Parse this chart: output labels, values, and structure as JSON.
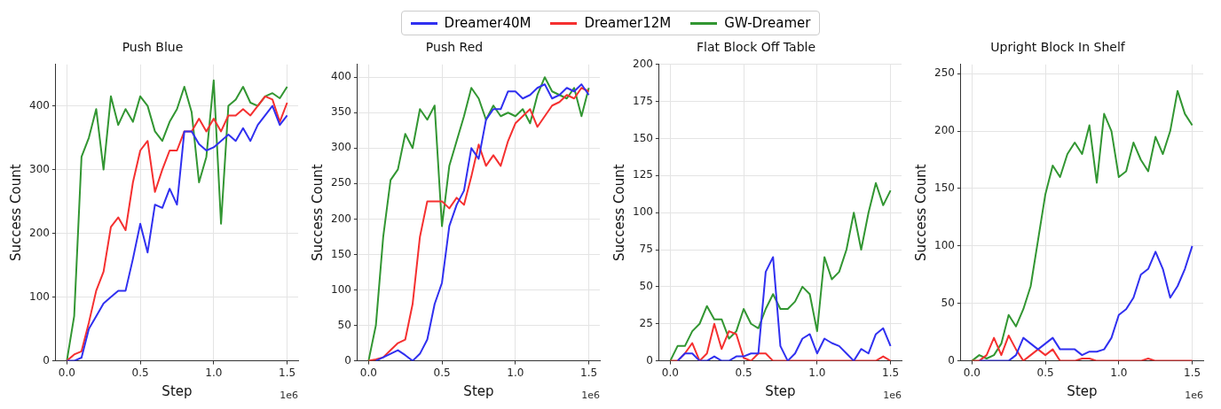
{
  "chart_data": [
    {
      "type": "line",
      "title": "Push Blue",
      "xlabel": "Step",
      "ylabel": "Success Count",
      "legend": "top",
      "grid": true,
      "marker": "none",
      "annotations": [
        "1e6"
      ],
      "x": [
        0,
        0.05,
        0.1,
        0.15,
        0.2,
        0.25,
        0.3,
        0.35,
        0.4,
        0.45,
        0.5,
        0.55,
        0.6,
        0.65,
        0.7,
        0.75,
        0.8,
        0.85,
        0.9,
        0.95,
        1.0,
        1.05,
        1.1,
        1.15,
        1.2,
        1.25,
        1.3,
        1.35,
        1.4,
        1.45,
        1.5
      ],
      "xlim": [
        -0.075,
        1.575
      ],
      "xticks": [
        {
          "value": 0,
          "label": "0.0"
        },
        {
          "value": 0.5,
          "label": "0.5"
        },
        {
          "value": 1,
          "label": "1.0"
        },
        {
          "value": 1.5,
          "label": "1.5"
        }
      ],
      "ylim": [
        0,
        465
      ],
      "yticks": [
        0,
        100,
        200,
        300,
        400
      ],
      "series": [
        {
          "name": "Dreamer40M",
          "color": "#3030f0",
          "values": [
            0,
            0,
            5,
            50,
            70,
            90,
            100,
            110,
            110,
            160,
            215,
            170,
            245,
            240,
            270,
            245,
            360,
            360,
            340,
            330,
            335,
            345,
            355,
            345,
            365,
            345,
            370,
            385,
            400,
            370,
            385
          ]
        },
        {
          "name": "Dreamer12M",
          "color": "#f53030",
          "values": [
            0,
            10,
            15,
            60,
            110,
            140,
            210,
            225,
            205,
            280,
            330,
            345,
            265,
            300,
            330,
            330,
            360,
            360,
            380,
            360,
            380,
            360,
            385,
            385,
            395,
            385,
            400,
            415,
            410,
            375,
            405
          ]
        },
        {
          "name": "GW-Dreamer",
          "color": "#329632",
          "values": [
            0,
            70,
            320,
            350,
            395,
            300,
            415,
            370,
            395,
            375,
            415,
            400,
            360,
            345,
            375,
            395,
            430,
            390,
            280,
            320,
            440,
            215,
            400,
            410,
            430,
            405,
            400,
            415,
            420,
            412,
            430
          ]
        }
      ]
    },
    {
      "type": "line",
      "title": "Push Red",
      "xlabel": "Step",
      "ylabel": "Success Count",
      "grid": true,
      "marker": "none",
      "annotations": [
        "1e6"
      ],
      "x": [
        0,
        0.05,
        0.1,
        0.15,
        0.2,
        0.25,
        0.3,
        0.35,
        0.4,
        0.45,
        0.5,
        0.55,
        0.6,
        0.65,
        0.7,
        0.75,
        0.8,
        0.85,
        0.9,
        0.95,
        1.0,
        1.05,
        1.1,
        1.15,
        1.2,
        1.25,
        1.3,
        1.35,
        1.4,
        1.45,
        1.5
      ],
      "xlim": [
        -0.075,
        1.575
      ],
      "xticks": [
        {
          "value": 0,
          "label": "0.0"
        },
        {
          "value": 0.5,
          "label": "0.5"
        },
        {
          "value": 1,
          "label": "1.0"
        },
        {
          "value": 1.5,
          "label": "1.5"
        }
      ],
      "ylim": [
        0,
        418
      ],
      "yticks": [
        0,
        50,
        100,
        150,
        200,
        250,
        300,
        350,
        400
      ],
      "series": [
        {
          "color": "#3030f0",
          "values": [
            null,
            0,
            5,
            10,
            15,
            8,
            0,
            10,
            30,
            80,
            110,
            190,
            220,
            240,
            300,
            285,
            340,
            355,
            355,
            380,
            380,
            370,
            375,
            385,
            390,
            370,
            375,
            385,
            380,
            390,
            375
          ]
        },
        {
          "color": "#f53030",
          "values": [
            0,
            2,
            5,
            15,
            25,
            30,
            80,
            175,
            225,
            225,
            225,
            215,
            230,
            220,
            260,
            305,
            275,
            290,
            275,
            310,
            335,
            345,
            355,
            330,
            345,
            360,
            365,
            375,
            370,
            385,
            380
          ]
        },
        {
          "color": "#329632",
          "values": [
            0,
            50,
            175,
            255,
            270,
            320,
            300,
            355,
            340,
            360,
            190,
            275,
            310,
            345,
            385,
            370,
            340,
            360,
            345,
            350,
            345,
            355,
            335,
            375,
            400,
            380,
            375,
            370,
            385,
            345,
            385
          ]
        }
      ]
    },
    {
      "type": "line",
      "title": "Flat Block Off Table",
      "xlabel": "Step",
      "ylabel": "Success Count",
      "grid": true,
      "marker": "none",
      "annotations": [
        "1e6"
      ],
      "x": [
        0,
        0.05,
        0.1,
        0.15,
        0.2,
        0.25,
        0.3,
        0.35,
        0.4,
        0.45,
        0.5,
        0.55,
        0.6,
        0.65,
        0.7,
        0.75,
        0.8,
        0.85,
        0.9,
        0.95,
        1.0,
        1.05,
        1.1,
        1.15,
        1.2,
        1.25,
        1.3,
        1.35,
        1.4,
        1.45,
        1.5
      ],
      "xlim": [
        -0.075,
        1.575
      ],
      "xticks": [
        {
          "value": 0,
          "label": "0.0"
        },
        {
          "value": 0.5,
          "label": "0.5"
        },
        {
          "value": 1,
          "label": "1.0"
        },
        {
          "value": 1.5,
          "label": "1.5"
        }
      ],
      "ylim": [
        0,
        200
      ],
      "yticks": [
        0,
        25,
        50,
        75,
        100,
        125,
        150,
        175,
        200
      ],
      "series": [
        {
          "color": "#3030f0",
          "values": [
            null,
            0,
            5,
            5,
            0,
            0,
            3,
            0,
            0,
            3,
            3,
            5,
            5,
            60,
            70,
            10,
            0,
            5,
            15,
            18,
            5,
            15,
            12,
            10,
            5,
            0,
            8,
            5,
            18,
            22,
            10
          ]
        },
        {
          "color": "#f53030",
          "values": [
            0,
            0,
            5,
            12,
            0,
            5,
            25,
            8,
            20,
            18,
            2,
            0,
            5,
            5,
            0,
            0,
            0,
            0,
            0,
            0,
            0,
            0,
            0,
            0,
            0,
            0,
            0,
            0,
            0,
            3,
            0
          ]
        },
        {
          "color": "#329632",
          "values": [
            0,
            10,
            10,
            20,
            25,
            37,
            28,
            28,
            15,
            20,
            35,
            25,
            22,
            35,
            45,
            35,
            35,
            40,
            50,
            45,
            20,
            70,
            55,
            60,
            75,
            100,
            75,
            100,
            120,
            105,
            115
          ]
        }
      ]
    },
    {
      "type": "line",
      "title": "Upright Block In Shelf",
      "xlabel": "Step",
      "ylabel": "Success Count",
      "grid": true,
      "marker": "none",
      "annotations": [
        "1e6"
      ],
      "x": [
        0,
        0.05,
        0.1,
        0.15,
        0.2,
        0.25,
        0.3,
        0.35,
        0.4,
        0.45,
        0.5,
        0.55,
        0.6,
        0.65,
        0.7,
        0.75,
        0.8,
        0.85,
        0.9,
        0.95,
        1.0,
        1.05,
        1.1,
        1.15,
        1.2,
        1.25,
        1.3,
        1.35,
        1.4,
        1.45,
        1.5
      ],
      "xlim": [
        -0.075,
        1.575
      ],
      "xticks": [
        {
          "value": 0,
          "label": "0.0"
        },
        {
          "value": 0.5,
          "label": "0.5"
        },
        {
          "value": 1,
          "label": "1.0"
        },
        {
          "value": 1.5,
          "label": "1.5"
        }
      ],
      "ylim": [
        0,
        258
      ],
      "yticks": [
        0,
        50,
        100,
        150,
        200,
        250
      ],
      "series": [
        {
          "color": "#3030f0",
          "values": [
            null,
            0,
            0,
            0,
            0,
            0,
            5,
            20,
            15,
            10,
            15,
            20,
            10,
            10,
            10,
            5,
            8,
            8,
            10,
            20,
            40,
            45,
            55,
            75,
            80,
            95,
            80,
            55,
            65,
            80,
            100
          ]
        },
        {
          "color": "#f53030",
          "values": [
            0,
            0,
            5,
            20,
            5,
            22,
            10,
            0,
            5,
            10,
            5,
            10,
            0,
            0,
            0,
            2,
            2,
            0,
            0,
            0,
            0,
            0,
            0,
            0,
            2,
            0,
            0,
            0,
            0,
            0,
            0
          ]
        },
        {
          "color": "#329632",
          "values": [
            0,
            5,
            2,
            5,
            15,
            40,
            30,
            45,
            65,
            105,
            145,
            170,
            160,
            180,
            190,
            180,
            205,
            155,
            215,
            200,
            160,
            165,
            190,
            175,
            165,
            195,
            180,
            200,
            235,
            215,
            205
          ]
        }
      ]
    }
  ]
}
